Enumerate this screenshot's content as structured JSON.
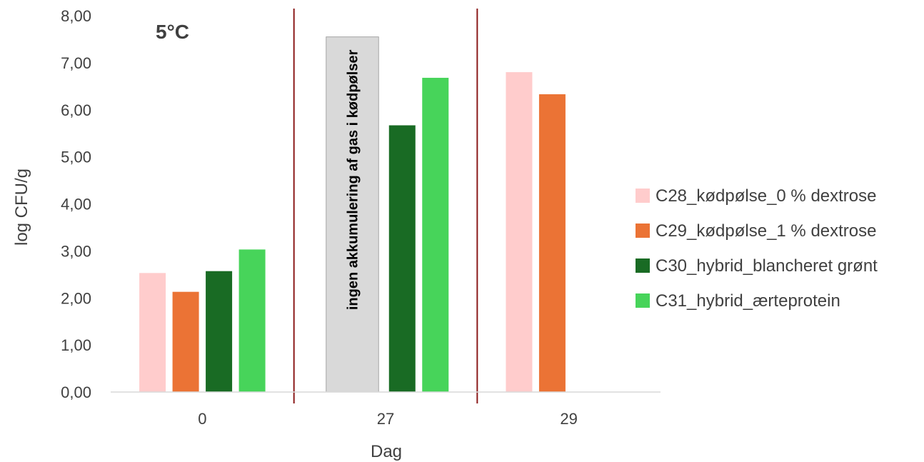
{
  "chart_data": {
    "type": "bar",
    "temperature_label": "5°C",
    "xlabel": "Dag",
    "ylabel": "log CFU/g",
    "categories": [
      "0",
      "27",
      "29"
    ],
    "ylim": [
      0,
      8
    ],
    "yticks": [
      "0,00",
      "1,00",
      "2,00",
      "3,00",
      "4,00",
      "5,00",
      "6,00",
      "7,00",
      "8,00"
    ],
    "grid": false,
    "legend_position": "right",
    "series": [
      {
        "name": "C28_kødpølse_0 % dextrose",
        "color": "#FFCCCC",
        "values": [
          2.53,
          null,
          6.8
        ]
      },
      {
        "name": "C29_kødpølse_1 % dextrose",
        "color": "#EB7335",
        "values": [
          2.13,
          null,
          6.33
        ]
      },
      {
        "name": "C30_hybrid_blancheret grønt",
        "color": "#196B24",
        "values": [
          2.57,
          5.67,
          null
        ]
      },
      {
        "name": "C31_hybrid_ærteprotein",
        "color": "#47D45A",
        "values": [
          3.03,
          6.68,
          null
        ]
      }
    ],
    "annotation_box": {
      "text": "ingen akkumulering af gas i kødpølser",
      "category": "27",
      "value": 7.55,
      "color": "#D9D9D9"
    },
    "separator_color": "#8B1A1A"
  }
}
